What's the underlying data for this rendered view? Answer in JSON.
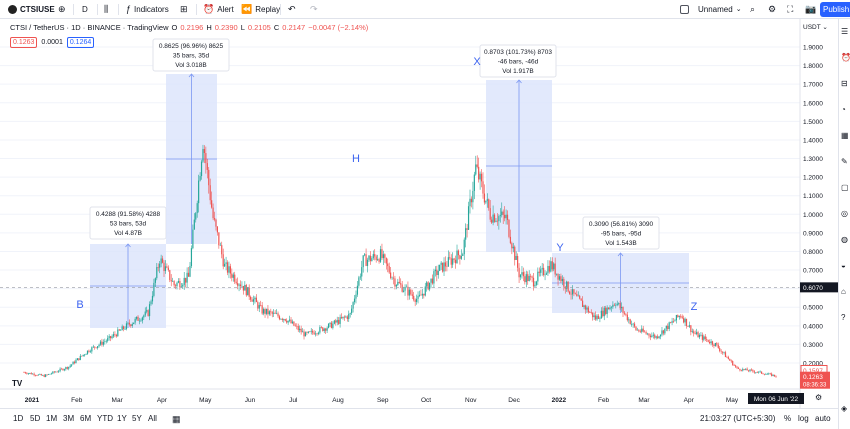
{
  "toolbar": {
    "symbol": "CTSIUSE",
    "interval": "D",
    "indicators": "Indicators",
    "alert": "Alert",
    "replay": "Replay",
    "layout_name": "Unnamed",
    "publish": "Publish"
  },
  "legend": {
    "title": "CTSI / TetherUS · 1D · BINANCE · TradingView",
    "o_label": "O",
    "o": "0.2196",
    "h_label": "H",
    "h": "0.2390",
    "l_label": "L",
    "l": "0.2105",
    "c_label": "C",
    "c": "0.2147",
    "change": "−0.0047 (−2.14%)"
  },
  "price_boxes": {
    "bid": "0.1263",
    "spread": "0.0001",
    "ask": "0.1264"
  },
  "price_scale": {
    "currency": "USDT",
    "ticks": [
      "1.9000",
      "1.8000",
      "1.7000",
      "1.6000",
      "1.5000",
      "1.4000",
      "1.3000",
      "1.2000",
      "1.1000",
      "1.0000",
      "0.9000",
      "0.8000",
      "0.7000",
      "0.6000",
      "0.5000",
      "0.4000",
      "0.3000",
      "0.2000"
    ],
    "crosshair_price": "0.6070",
    "last_price": "0.1597",
    "current_price": "0.1263",
    "countdown": "08:36:33"
  },
  "time_scale": {
    "ticks": [
      "2021",
      "Feb",
      "Mar",
      "Apr",
      "May",
      "Jun",
      "Jul",
      "Aug",
      "Sep",
      "Oct",
      "Nov",
      "Dec",
      "2022",
      "Feb",
      "Mar",
      "Apr",
      "May"
    ],
    "crosshair_date": "Mon 06 Jun '22"
  },
  "annotations": {
    "wave_labels": [
      "B",
      "H",
      "X",
      "Y",
      "Z"
    ],
    "ranges": [
      {
        "line1": "0.4288 (91.58%) 4288",
        "line2": "53 bars, 53d",
        "line3": "Vol 4.87B"
      },
      {
        "line1": "0.8625 (96.96%) 8625",
        "line2": "35 bars, 35d",
        "line3": "Vol 3.018B"
      },
      {
        "line1": "0.8703 (101.73%) 8703",
        "line2": "-46 bars, -46d",
        "line3": "Vol 1.917B"
      },
      {
        "line1": "0.3090 (56.81%) 3090",
        "line2": "-95 bars, -95d",
        "line3": "Vol 1.543B"
      }
    ]
  },
  "bottom_bar": {
    "ranges": [
      "1D",
      "5D",
      "1M",
      "3M",
      "6M",
      "YTD",
      "1Y",
      "5Y",
      "All"
    ],
    "clock": "21:03:27 (UTC+5:30)",
    "percent": "%",
    "log": "log",
    "auto": "auto"
  },
  "colors": {
    "up": "#26a69a",
    "down": "#ef5350",
    "range_fill": "#dbe3fb",
    "range_line": "#7b97f2",
    "accent": "#2962ff"
  },
  "chart_data": {
    "type": "candlestick",
    "x_range": [
      "2021-01-01",
      "2022-06-06"
    ],
    "ylim": [
      0.1,
      1.95
    ],
    "close_series": [
      [
        "2021-01-01",
        0.15
      ],
      [
        "2021-01-15",
        0.13
      ],
      [
        "2021-02-01",
        0.18
      ],
      [
        "2021-02-15",
        0.27
      ],
      [
        "2021-03-01",
        0.33
      ],
      [
        "2021-03-15",
        0.41
      ],
      [
        "2021-03-28",
        0.47
      ],
      [
        "2021-04-05",
        0.76
      ],
      [
        "2021-04-15",
        0.62
      ],
      [
        "2021-04-25",
        0.66
      ],
      [
        "2021-05-05",
        1.4
      ],
      [
        "2021-05-12",
        0.98
      ],
      [
        "2021-05-20",
        0.72
      ],
      [
        "2021-06-01",
        0.62
      ],
      [
        "2021-06-15",
        0.48
      ],
      [
        "2021-07-01",
        0.44
      ],
      [
        "2021-07-15",
        0.35
      ],
      [
        "2021-08-01",
        0.4
      ],
      [
        "2021-08-15",
        0.46
      ],
      [
        "2021-08-24",
        0.75
      ],
      [
        "2021-09-05",
        0.78
      ],
      [
        "2021-09-15",
        0.64
      ],
      [
        "2021-10-01",
        0.54
      ],
      [
        "2021-10-15",
        0.7
      ],
      [
        "2021-11-01",
        0.8
      ],
      [
        "2021-11-10",
        1.25
      ],
      [
        "2021-11-20",
        1.0
      ],
      [
        "2021-12-01",
        0.98
      ],
      [
        "2021-12-10",
        0.68
      ],
      [
        "2021-12-20",
        0.64
      ],
      [
        "2022-01-01",
        0.73
      ],
      [
        "2022-01-15",
        0.58
      ],
      [
        "2022-02-01",
        0.44
      ],
      [
        "2022-02-15",
        0.53
      ],
      [
        "2022-03-01",
        0.38
      ],
      [
        "2022-03-15",
        0.34
      ],
      [
        "2022-04-01",
        0.46
      ],
      [
        "2022-04-10",
        0.36
      ],
      [
        "2022-04-25",
        0.3
      ],
      [
        "2022-05-10",
        0.17
      ],
      [
        "2022-05-25",
        0.15
      ],
      [
        "2022-06-06",
        0.13
      ]
    ]
  }
}
